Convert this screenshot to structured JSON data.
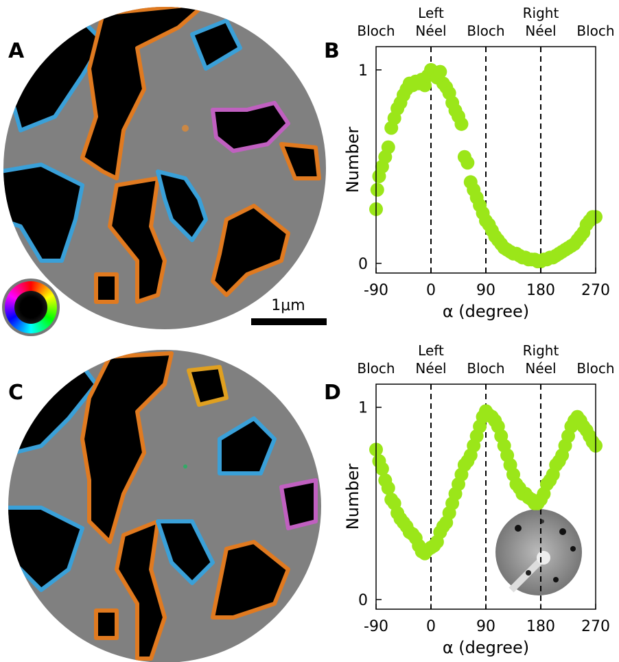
{
  "image_panels": [
    {
      "label": "A",
      "scale_bar": "1μm"
    },
    {
      "label": "C"
    }
  ],
  "chart_data": [
    {
      "type": "scatter",
      "panel_label": "B",
      "x_label": "α (degree)",
      "y_label": "Number",
      "color": "#9be619",
      "annotations": [
        {
          "x": -90,
          "lines": [
            "Bloch"
          ]
        },
        {
          "x": 0,
          "lines": [
            "Left",
            "Néel"
          ]
        },
        {
          "x": 90,
          "lines": [
            "Bloch"
          ]
        },
        {
          "x": 180,
          "lines": [
            "Right",
            "Néel"
          ]
        },
        {
          "x": 270,
          "lines": [
            "Bloch"
          ]
        }
      ],
      "vlines": [
        0,
        90,
        180
      ],
      "xlim": [
        -90,
        270
      ],
      "xticks": [
        -90,
        0,
        90,
        180,
        270
      ],
      "ylim": [
        -0.05,
        1.12
      ],
      "yticks": [
        0,
        1
      ],
      "x": [
        -90,
        -88,
        -85,
        -80,
        -75,
        -70,
        -65,
        -60,
        -55,
        -50,
        -45,
        -40,
        -35,
        -30,
        -25,
        -20,
        -15,
        -10,
        -5,
        0,
        5,
        10,
        15,
        20,
        25,
        30,
        35,
        40,
        45,
        50,
        55,
        60,
        65,
        70,
        75,
        80,
        85,
        90,
        95,
        100,
        105,
        110,
        115,
        120,
        125,
        130,
        135,
        140,
        145,
        150,
        155,
        160,
        165,
        170,
        175,
        180,
        185,
        190,
        195,
        200,
        205,
        210,
        215,
        220,
        225,
        230,
        235,
        240,
        245,
        250,
        255,
        260,
        265,
        270
      ],
      "values": [
        0.28,
        0.38,
        0.45,
        0.5,
        0.55,
        0.6,
        0.7,
        0.75,
        0.8,
        0.83,
        0.87,
        0.9,
        0.93,
        0.92,
        0.94,
        0.93,
        0.95,
        0.92,
        0.97,
        1.0,
        0.98,
        0.96,
        0.99,
        0.93,
        0.91,
        0.88,
        0.83,
        0.79,
        0.76,
        0.72,
        0.55,
        0.52,
        0.42,
        0.38,
        0.34,
        0.3,
        0.26,
        0.22,
        0.2,
        0.17,
        0.14,
        0.12,
        0.1,
        0.08,
        0.07,
        0.06,
        0.05,
        0.05,
        0.04,
        0.03,
        0.03,
        0.02,
        0.02,
        0.02,
        0.01,
        0.01,
        0.02,
        0.02,
        0.03,
        0.03,
        0.04,
        0.05,
        0.06,
        0.07,
        0.08,
        0.09,
        0.1,
        0.12,
        0.14,
        0.16,
        0.2,
        0.22,
        0.24,
        0.24
      ]
    },
    {
      "type": "scatter",
      "panel_label": "D",
      "x_label": "α (degree)",
      "y_label": "Number",
      "color": "#9be619",
      "annotations": [
        {
          "x": -90,
          "lines": [
            "Bloch"
          ]
        },
        {
          "x": 0,
          "lines": [
            "Left",
            "Néel"
          ]
        },
        {
          "x": 90,
          "lines": [
            "Bloch"
          ]
        },
        {
          "x": 180,
          "lines": [
            "Right",
            "Néel"
          ]
        },
        {
          "x": 270,
          "lines": [
            "Bloch"
          ]
        }
      ],
      "vlines": [
        0,
        90,
        180
      ],
      "xlim": [
        -90,
        270
      ],
      "xticks": [
        -90,
        0,
        90,
        180,
        270
      ],
      "ylim": [
        -0.05,
        1.12
      ],
      "yticks": [
        0,
        1
      ],
      "x": [
        -90,
        -85,
        -80,
        -75,
        -70,
        -65,
        -60,
        -55,
        -50,
        -45,
        -40,
        -35,
        -30,
        -25,
        -20,
        -15,
        -10,
        -5,
        0,
        5,
        10,
        15,
        20,
        25,
        30,
        35,
        40,
        45,
        50,
        55,
        60,
        65,
        70,
        75,
        80,
        85,
        90,
        95,
        100,
        105,
        110,
        115,
        120,
        125,
        130,
        135,
        140,
        145,
        150,
        155,
        160,
        165,
        170,
        175,
        180,
        185,
        190,
        195,
        200,
        205,
        210,
        215,
        220,
        225,
        230,
        235,
        240,
        245,
        250,
        255,
        260,
        265,
        270
      ],
      "values": [
        0.78,
        0.72,
        0.68,
        0.62,
        0.58,
        0.52,
        0.5,
        0.45,
        0.42,
        0.4,
        0.38,
        0.35,
        0.34,
        0.32,
        0.28,
        0.25,
        0.24,
        0.26,
        0.27,
        0.28,
        0.3,
        0.35,
        0.38,
        0.4,
        0.45,
        0.5,
        0.55,
        0.6,
        0.65,
        0.7,
        0.72,
        0.75,
        0.8,
        0.85,
        0.9,
        0.95,
        0.98,
        0.96,
        0.95,
        0.93,
        0.9,
        0.85,
        0.8,
        0.75,
        0.7,
        0.65,
        0.6,
        0.58,
        0.55,
        0.55,
        0.53,
        0.52,
        0.5,
        0.5,
        0.52,
        0.55,
        0.6,
        0.62,
        0.65,
        0.7,
        0.72,
        0.75,
        0.8,
        0.85,
        0.9,
        0.93,
        0.95,
        0.93,
        0.9,
        0.88,
        0.85,
        0.82,
        0.8
      ]
    }
  ]
}
